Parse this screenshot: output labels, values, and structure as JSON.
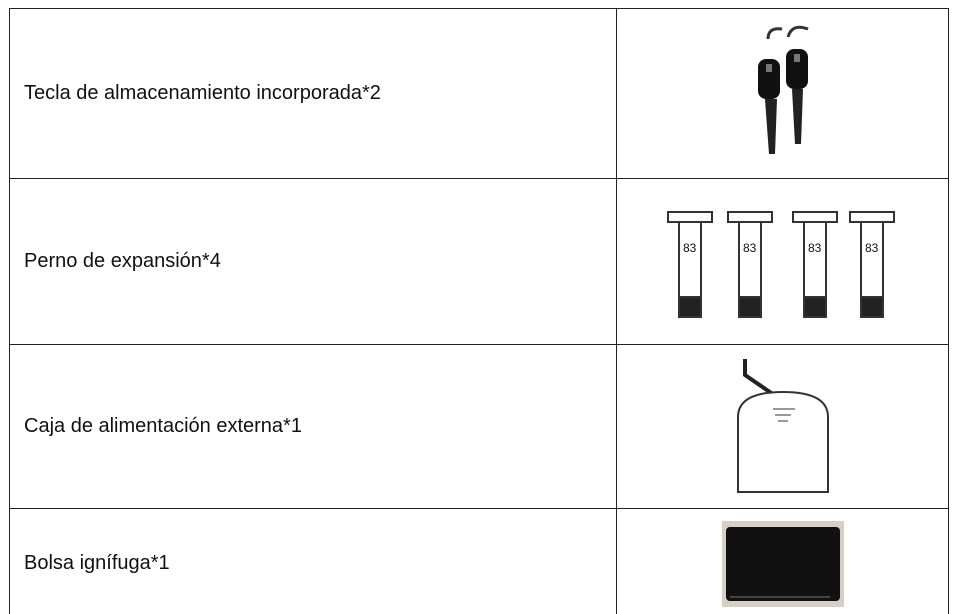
{
  "table": {
    "rows": [
      {
        "label": "Tecla de almacenamiento incorporada*2"
      },
      {
        "label": "Perno de expansión*4"
      },
      {
        "label": "Caja de alimentación externa*1"
      },
      {
        "label": "Bolsa ignífuga*1"
      }
    ]
  }
}
